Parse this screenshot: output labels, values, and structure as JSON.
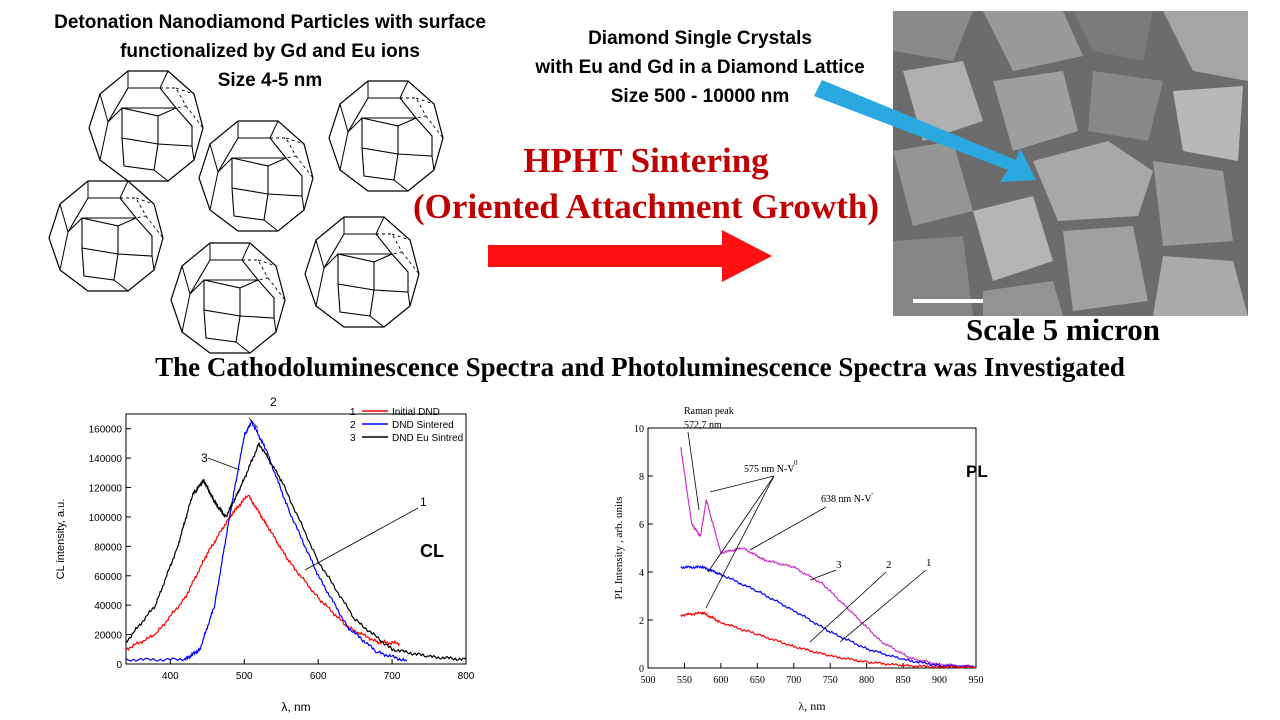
{
  "nanodiamond": {
    "title": "Detonation Nanodiamond Particles with surface",
    "title2": "functionalized by Gd and Eu ions",
    "size": "Size 4-5 nm"
  },
  "crystals": {
    "line1": "Diamond Single Crystals",
    "line2": "with Eu and Gd in a Diamond Lattice",
    "line3": "Size 500 - 10000 nm"
  },
  "process": {
    "line1": "HPHT Sintering",
    "line2": "(Oriented Attachment Growth)"
  },
  "sem": {
    "scale": "Scale 5 micron"
  },
  "main_heading": "The Cathodoluminescence Spectra and Photoluminescence Spectra was Investigated",
  "colors": {
    "red_arrow": "#ff1010",
    "blue_arrow": "#29a9e0",
    "title_red": "#c00000"
  },
  "chart_data": [
    {
      "type": "line",
      "label": "CL",
      "xlabel": "λ, nm",
      "ylabel": "CL intensity, a.u.",
      "xlim": [
        340,
        800
      ],
      "ylim": [
        0,
        170000
      ],
      "xticks": [
        "400",
        "500",
        "600",
        "700",
        "800"
      ],
      "yticks": [
        "0",
        "20000",
        "40000",
        "60000",
        "80000",
        "100000",
        "120000",
        "140000",
        "160000"
      ],
      "legend": [
        {
          "num": "1",
          "name": "Initial DND",
          "color": "#ff0000"
        },
        {
          "num": "2",
          "name": "DND Sintered",
          "color": "#0000ff"
        },
        {
          "num": "3",
          "name": "DND Eu Sintred",
          "color": "#000000"
        }
      ],
      "curve_labels": [
        "1",
        "2",
        "3"
      ],
      "series": [
        {
          "name": "Initial DND",
          "color": "#ff0000",
          "x": [
            340,
            380,
            420,
            450,
            480,
            505,
            530,
            560,
            600,
            640,
            680,
            710
          ],
          "y": [
            10000,
            20000,
            45000,
            75000,
            100000,
            115000,
            95000,
            70000,
            45000,
            25000,
            15000,
            14000
          ]
        },
        {
          "name": "DND Sintered",
          "color": "#0000ff",
          "x": [
            340,
            420,
            440,
            460,
            480,
            500,
            510,
            530,
            560,
            600,
            640,
            680,
            720
          ],
          "y": [
            3000,
            3000,
            10000,
            40000,
            100000,
            155000,
            165000,
            145000,
            105000,
            60000,
            25000,
            8000,
            2000
          ]
        },
        {
          "name": "DND Eu Sintred",
          "color": "#000000",
          "x": [
            340,
            380,
            410,
            430,
            445,
            460,
            475,
            495,
            520,
            550,
            600,
            650,
            700,
            750,
            800
          ],
          "y": [
            15000,
            40000,
            80000,
            115000,
            125000,
            110000,
            100000,
            120000,
            150000,
            125000,
            70000,
            30000,
            10000,
            5000,
            3000
          ]
        }
      ]
    },
    {
      "type": "line",
      "label": "PL",
      "xlabel": "λ, nm",
      "ylabel": "PL Intensity , arb. units",
      "xlim": [
        500,
        950
      ],
      "ylim": [
        0,
        10
      ],
      "xticks": [
        "500",
        "550",
        "600",
        "650",
        "700",
        "750",
        "800",
        "850",
        "900",
        "950"
      ],
      "yticks": [
        "0",
        "2",
        "4",
        "6",
        "8",
        "10"
      ],
      "annotations": [
        "Raman peak",
        "572,7 nm",
        "575 nm N-V",
        "638 nm N-V"
      ],
      "curve_labels": [
        "3",
        "2",
        "1"
      ],
      "series": [
        {
          "name": "3",
          "color": "#cc33cc",
          "x": [
            545,
            560,
            572,
            580,
            600,
            630,
            660,
            700,
            740,
            780,
            820,
            860,
            900,
            950
          ],
          "y": [
            9.2,
            6.0,
            5.5,
            7.0,
            4.8,
            5.0,
            4.5,
            4.2,
            3.5,
            2.3,
            1.1,
            0.4,
            0.15,
            0.05
          ]
        },
        {
          "name": "2",
          "color": "#0000ff",
          "x": [
            545,
            575,
            600,
            650,
            700,
            750,
            800,
            850,
            900,
            950
          ],
          "y": [
            4.2,
            4.2,
            3.9,
            3.2,
            2.4,
            1.5,
            0.8,
            0.35,
            0.1,
            0.05
          ]
        },
        {
          "name": "1",
          "color": "#ff0000",
          "x": [
            545,
            575,
            600,
            650,
            700,
            750,
            800,
            850,
            900,
            950
          ],
          "y": [
            2.2,
            2.3,
            1.9,
            1.4,
            0.9,
            0.5,
            0.25,
            0.1,
            0.05,
            0.02
          ]
        }
      ]
    }
  ]
}
